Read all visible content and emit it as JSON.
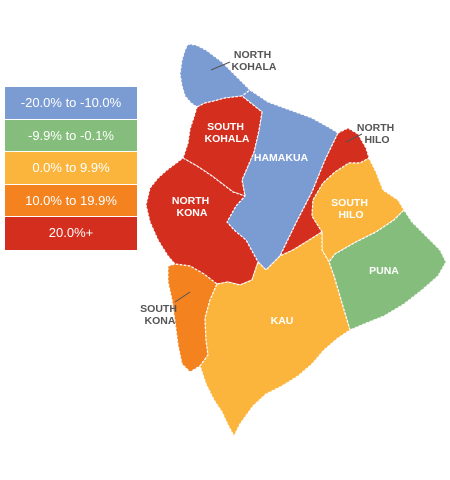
{
  "colors": {
    "blue": "#7b9bd3",
    "green": "#85bd7c",
    "yellow": "#fbb53d",
    "orange": "#f3821f",
    "red": "#d42e1f"
  },
  "legend": [
    {
      "label": "-20.0% to -10.0%",
      "color": "#7b9bd3"
    },
    {
      "label": "-9.9% to -0.1%",
      "color": "#85bd7c"
    },
    {
      "label": "0.0% to 9.9%",
      "color": "#fbb53d"
    },
    {
      "label": "10.0% to 19.9%",
      "color": "#f3821f"
    },
    {
      "label": "20.0%+",
      "color": "#d42e1f"
    }
  ],
  "regions": {
    "north_kohala": {
      "line1": "NORTH",
      "line2": "KOHALA",
      "range": "-20.0% to -10.0%"
    },
    "south_kohala": {
      "line1": "SOUTH",
      "line2": "KOHALA",
      "range": "20.0%+"
    },
    "hamakua": {
      "line1": "HAMAKUA",
      "range": "-20.0% to -10.0%"
    },
    "north_hilo": {
      "line1": "NORTH",
      "line2": "HILO",
      "range": "20.0%+"
    },
    "south_hilo": {
      "line1": "SOUTH",
      "line2": "HILO",
      "range": "0.0% to 9.9%"
    },
    "north_kona": {
      "line1": "NORTH",
      "line2": "KONA",
      "range": "20.0%+"
    },
    "puna": {
      "line1": "PUNA",
      "range": "-9.9% to -0.1%"
    },
    "south_kona": {
      "line1": "SOUTH",
      "line2": "KONA",
      "range": "10.0% to 19.9%"
    },
    "kau": {
      "line1": "KAU",
      "range": "0.0% to 9.9%"
    }
  }
}
